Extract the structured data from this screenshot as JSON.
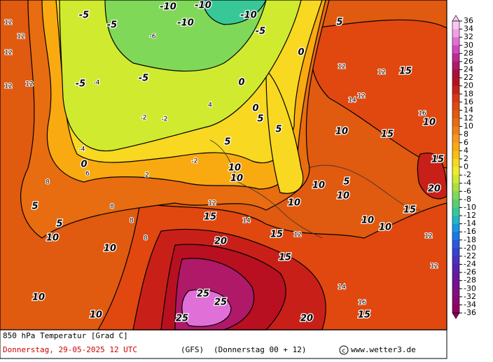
{
  "map": {
    "title": "850 hPa Temperatur [Grad C]",
    "date": "Donnerstag, 29-05-2025  12 UTC",
    "model": "(GFS)",
    "run": "(Donnerstag 00 + 12)",
    "source": "www.wetter3.de",
    "contour_labels": [
      -10,
      -10,
      -10,
      -5,
      -5,
      -10,
      -5,
      -5,
      -5,
      0,
      5,
      0,
      0,
      5,
      5,
      0,
      5,
      10,
      10,
      5,
      5,
      10,
      10,
      10,
      10,
      10,
      15,
      15,
      20,
      15,
      20,
      25,
      25,
      25,
      10,
      15,
      15,
      10,
      20,
      15,
      10,
      10,
      15,
      10,
      10,
      5,
      15
    ],
    "minor_labels": [
      12,
      12,
      12,
      12,
      12,
      14,
      12,
      12,
      12,
      16,
      -6,
      -4,
      -2,
      -2,
      -2,
      -4,
      8,
      8,
      8,
      8,
      6,
      2,
      4,
      12,
      14,
      12,
      14,
      16,
      12,
      12
    ]
  },
  "legend": {
    "ticks": [
      36,
      34,
      32,
      30,
      28,
      26,
      24,
      22,
      20,
      18,
      16,
      14,
      12,
      10,
      8,
      6,
      4,
      2,
      0,
      -2,
      -4,
      -6,
      -8,
      -10,
      -12,
      -14,
      -16,
      -18,
      -20,
      -22,
      -24,
      -26,
      -28,
      -30,
      -32,
      -34,
      -36
    ],
    "colors": [
      "#f8c8f0",
      "#f0a0e8",
      "#e070d8",
      "#d048c0",
      "#c02898",
      "#b01868",
      "#a81038",
      "#b81020",
      "#c82018",
      "#d83818",
      "#e04810",
      "#e05a10",
      "#e86c10",
      "#f07e18",
      "#f89420",
      "#f8aa10",
      "#f8c010",
      "#f8d820",
      "#f0ec28",
      "#d0ea30",
      "#a8e040",
      "#80d858",
      "#58d070",
      "#38c898",
      "#20b8c8",
      "#1898e0",
      "#1878e8",
      "#2858e0",
      "#3840d0",
      "#4830c0",
      "#5820b0",
      "#6818a0",
      "#781090",
      "#801080",
      "#880870",
      "#900060"
    ]
  }
}
